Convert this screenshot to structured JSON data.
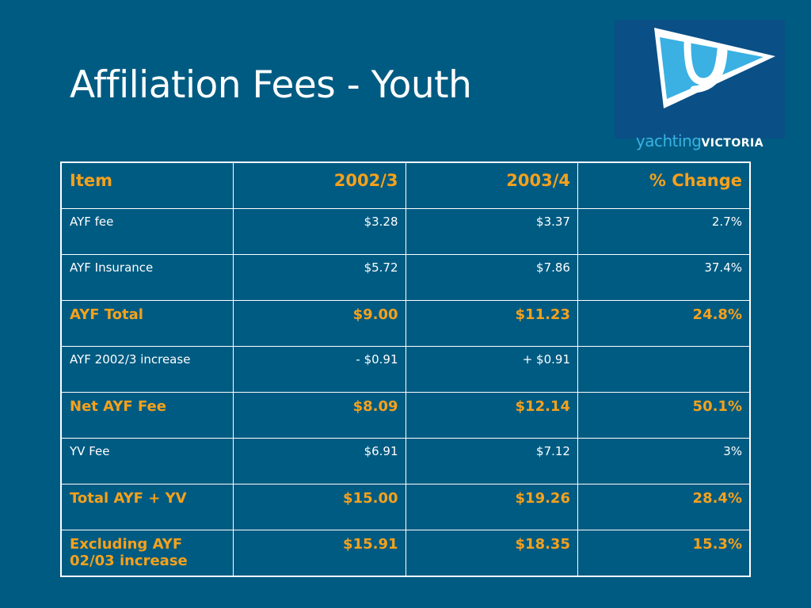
{
  "slide": {
    "title": "Affiliation Fees - Youth"
  },
  "logo": {
    "word1": "yachting",
    "word2": "VICTORIA",
    "icon": "yacht-pennant-y-icon"
  },
  "colors": {
    "background": "#005b82",
    "accent": "#f5a11c",
    "text": "#ffffff",
    "logo_bg": "#0a4f86",
    "logo_light": "#3ab0e3"
  },
  "table": {
    "headers": [
      "Item",
      "2002/3",
      "2003/4",
      "% Change"
    ],
    "rows": [
      {
        "cells": [
          "AYF fee",
          "$3.28",
          "$3.37",
          "2.7%"
        ],
        "bold": false
      },
      {
        "cells": [
          "AYF Insurance",
          "$5.72",
          "$7.86",
          "37.4%"
        ],
        "bold": false
      },
      {
        "cells": [
          "AYF Total",
          "$9.00",
          "$11.23",
          "24.8%"
        ],
        "bold": true
      },
      {
        "cells": [
          "AYF 2002/3 increase",
          "- $0.91",
          "+ $0.91",
          ""
        ],
        "bold": false
      },
      {
        "cells": [
          "Net AYF Fee",
          "$8.09",
          "$12.14",
          "50.1%"
        ],
        "bold": true
      },
      {
        "cells": [
          "YV Fee",
          "$6.91",
          "$7.12",
          "3%"
        ],
        "bold": false
      },
      {
        "cells": [
          "Total AYF + YV",
          "$15.00",
          "$19.26",
          "28.4%"
        ],
        "bold": true
      },
      {
        "cells": [
          "Excluding AYF 02/03 increase",
          "$15.91",
          "$18.35",
          "15.3%"
        ],
        "bold": true
      }
    ]
  }
}
